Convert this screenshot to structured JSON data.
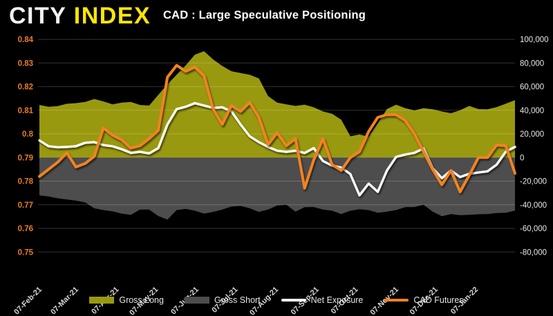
{
  "header": {
    "logo_city": "CITY",
    "logo_index": "INDEX",
    "title": "CAD : Large Speculative Positioning"
  },
  "colors": {
    "background": "#000000",
    "gross_long": "#99990f",
    "gross_short": "#4d4d4d",
    "net_exposure": "#ffffff",
    "cad_futures": "#f28220",
    "left_axis_text": "#e87f1f",
    "right_axis_text": "#e8e8e8",
    "x_axis_text": "#d8d8d8",
    "gridline": "rgba(255,255,255,0.20)",
    "logo_yellow": "#ffe600"
  },
  "chart_data": {
    "type": "area+line combo (weekly COT positioning)",
    "title": "CAD : Large Speculative Positioning",
    "grid": "horizontal only",
    "left_axis": {
      "side": "left",
      "min": 0.75,
      "max": 0.84,
      "tick_labels": [
        "0.84",
        "0.83",
        "0.82",
        "0.81",
        "0.8",
        "0.79",
        "0.78",
        "0.77",
        "0.76",
        "0.75"
      ]
    },
    "right_axis": {
      "side": "right",
      "min": -80000,
      "max": 100000,
      "tick_labels": [
        "100,000",
        "80,000",
        "60,000",
        "40,000",
        "20,000",
        "0",
        "-20,000",
        "-40,000",
        "-60,000",
        "-80,000"
      ]
    },
    "x_tick_labels": [
      "07-Feb-21",
      "07-Mar-21",
      "07-Apr-21",
      "07-May-21",
      "07-Jun-21",
      "07-Jul-21",
      "07-Aug-21",
      "07-Sep-21",
      "07-Oct-21",
      "07-Nov-21",
      "07-Dec-21",
      "07-Jan-22"
    ],
    "series": [
      {
        "name": "Gross Long",
        "type": "area",
        "axis": "right",
        "color": "#99990f",
        "values": [
          44500,
          43000,
          43500,
          45500,
          46000,
          47000,
          49500,
          47500,
          45000,
          46500,
          47000,
          44500,
          44000,
          53000,
          62000,
          70000,
          78000,
          87000,
          90000,
          83000,
          77500,
          73000,
          71500,
          70000,
          67000,
          52000,
          46500,
          45000,
          43700,
          44700,
          42500,
          39000,
          37000,
          32000,
          18000,
          19500,
          17500,
          29000,
          41000,
          44700,
          41800,
          39800,
          41800,
          40800,
          39000,
          37500,
          40000,
          43700,
          41000,
          40800,
          42700,
          45600,
          48600
        ]
      },
      {
        "name": "Gross Short",
        "type": "area",
        "axis": "right",
        "color": "#4d4d4d",
        "values": [
          -32000,
          -33000,
          -34500,
          -35500,
          -36500,
          -38000,
          -43000,
          -44500,
          -45500,
          -47500,
          -48500,
          -44000,
          -44000,
          -49500,
          -52500,
          -44500,
          -43500,
          -45000,
          -47500,
          -46000,
          -44000,
          -41500,
          -41000,
          -43000,
          -46000,
          -44000,
          -40500,
          -40000,
          -45800,
          -42000,
          -41900,
          -44000,
          -45000,
          -47800,
          -45000,
          -43800,
          -44500,
          -46800,
          -45800,
          -44500,
          -42000,
          -41900,
          -40000,
          -45800,
          -49700,
          -47800,
          -48800,
          -48500,
          -48000,
          -47800,
          -47000,
          -46800,
          -44900
        ]
      },
      {
        "name": "Net Exposure",
        "type": "line",
        "axis": "right",
        "color": "#ffffff",
        "values": [
          14500,
          9600,
          8700,
          9000,
          9600,
          12500,
          13000,
          10500,
          9500,
          7000,
          4000,
          4800,
          3500,
          8000,
          28000,
          41000,
          43000,
          46000,
          44000,
          42000,
          42500,
          39000,
          28000,
          18000,
          13000,
          9000,
          5800,
          4800,
          5800,
          3800,
          8000,
          -3000,
          -6900,
          -8500,
          -14000,
          -32000,
          -22000,
          -29000,
          -11000,
          500,
          2500,
          4000,
          7700,
          -9000,
          -17500,
          -11000,
          -16500,
          -13800,
          -12700,
          -11700,
          -6000,
          5000,
          9000
        ]
      },
      {
        "name": "CAD Futures",
        "type": "line",
        "axis": "left",
        "color": "#f28220",
        "values": [
          0.782,
          0.785,
          0.788,
          0.792,
          0.786,
          0.7875,
          0.7905,
          0.8025,
          0.7995,
          0.7975,
          0.794,
          0.795,
          0.798,
          0.8015,
          0.824,
          0.829,
          0.8265,
          0.8283,
          0.8245,
          0.8105,
          0.804,
          0.812,
          0.8095,
          0.8133,
          0.807,
          0.7955,
          0.8005,
          0.795,
          0.798,
          0.777,
          0.789,
          0.798,
          0.787,
          0.7845,
          0.79,
          0.7925,
          0.801,
          0.807,
          0.8082,
          0.8081,
          0.8057,
          0.8,
          0.7925,
          0.785,
          0.7785,
          0.7845,
          0.7755,
          0.7825,
          0.79,
          0.79,
          0.7953,
          0.795,
          0.7833
        ]
      }
    ],
    "legend_position": "bottom center"
  },
  "legend": {
    "items": [
      {
        "label": "Gross Long",
        "swatch": "rect",
        "color": "#99990f"
      },
      {
        "label": "Gross Short",
        "swatch": "rect",
        "color": "#4d4d4d"
      },
      {
        "label": "Net Exposure",
        "swatch": "line",
        "color": "#ffffff"
      },
      {
        "label": "CAD Futures",
        "swatch": "line",
        "color": "#f28220"
      }
    ]
  }
}
